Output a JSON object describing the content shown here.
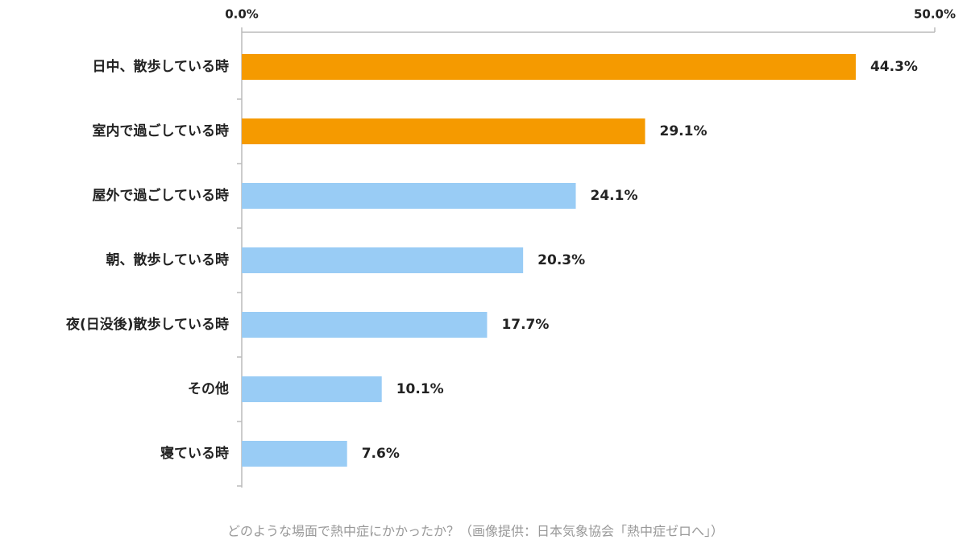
{
  "chart_data": {
    "type": "hbar",
    "categories": [
      "日中、散歩している時",
      "室内で過ごしている時",
      "屋外で過ごしている時",
      "朝、散歩している時",
      "夜(日没後)散歩している時",
      "その他",
      "寝ている時"
    ],
    "values": [
      44.3,
      29.1,
      24.1,
      20.3,
      17.7,
      10.1,
      7.6
    ],
    "value_labels": [
      "44.3%",
      "29.1%",
      "24.1%",
      "20.3%",
      "17.7%",
      "10.1%",
      "7.6%"
    ],
    "colors": [
      "#f59a00",
      "#f59a00",
      "#99ccf5",
      "#99ccf5",
      "#99ccf5",
      "#99ccf5",
      "#99ccf5"
    ],
    "xlim": [
      0,
      50
    ],
    "xticks": [
      {
        "value": 0,
        "label": "0.0%"
      },
      {
        "value": 50,
        "label": "50.0%"
      }
    ],
    "caption": "どのような場面で熱中症にかかったか？（画像提供：日本気象協会「熱中症ゼロへ」）"
  }
}
